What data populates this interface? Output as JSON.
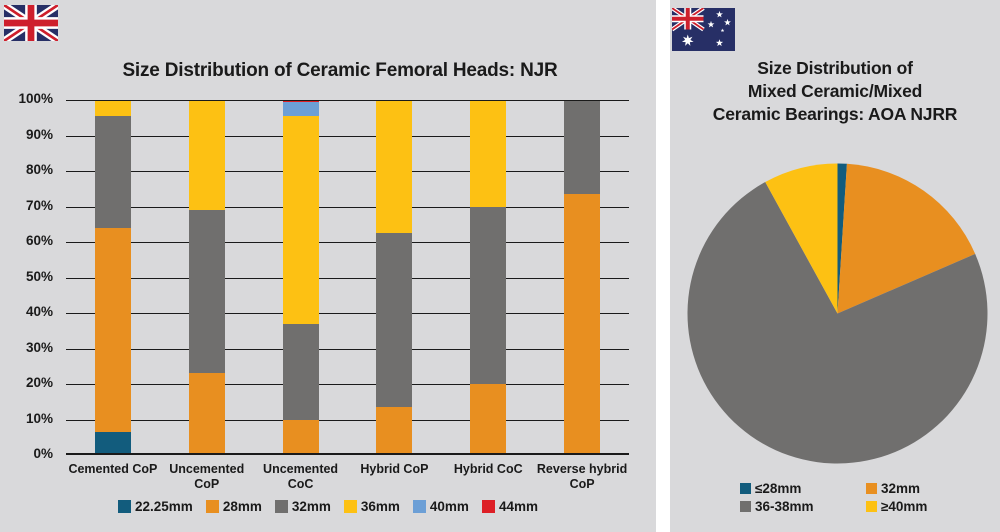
{
  "colors": {
    "size_2225": "#125c7d",
    "size_28": "#e88f20",
    "size_32": "#706f6e",
    "size_36": "#fdc113",
    "size_40": "#6c9fd6",
    "size_44": "#dd1f26",
    "panel_bg": "#d9d9db",
    "axis": "#1a1a1a"
  },
  "left_chart": {
    "title": "Size Distribution of Ceramic Femoral Heads: NJR",
    "flag": "united-kingdom"
  },
  "right_chart": {
    "title_lines": [
      "Size Distribution of",
      "Mixed Ceramic/Mixed",
      "Ceramic Bearings: AOA NJRR"
    ],
    "flag": "australia"
  },
  "chart_data": [
    {
      "type": "bar",
      "stacked": true,
      "title": "Size Distribution of Ceramic Femoral Heads: NJR",
      "categories": [
        "Cemented CoP",
        "Uncemented CoP",
        "Uncemented CoC",
        "Hybrid CoP",
        "Hybrid CoC",
        "Reverse hybrid CoP"
      ],
      "series": [
        {
          "name": "22.25mm",
          "color": "size_2225",
          "values": [
            6.5,
            0,
            0,
            0,
            0,
            0
          ]
        },
        {
          "name": "28mm",
          "color": "size_28",
          "values": [
            57.5,
            23,
            10,
            13.5,
            20,
            73.5
          ]
        },
        {
          "name": "32mm",
          "color": "size_32",
          "values": [
            31.5,
            46,
            27,
            49,
            50,
            26.5
          ]
        },
        {
          "name": "36mm",
          "color": "size_36",
          "values": [
            4.5,
            31,
            58.5,
            37.5,
            30,
            0
          ]
        },
        {
          "name": "40mm",
          "color": "size_40",
          "values": [
            0,
            0,
            4,
            0,
            0,
            0
          ]
        },
        {
          "name": "44mm",
          "color": "size_44",
          "values": [
            0,
            0,
            0.5,
            0,
            0,
            0
          ]
        }
      ],
      "ylabel": "",
      "xlabel": "",
      "ylim": [
        0,
        100
      ],
      "y_ticks": [
        "0%",
        "10%",
        "20%",
        "30%",
        "40%",
        "50%",
        "60%",
        "70%",
        "80%",
        "90%",
        "100%"
      ],
      "grid": true,
      "legend_position": "bottom"
    },
    {
      "type": "pie",
      "title": "Size Distribution of Mixed Ceramic/Mixed Ceramic Bearings: AOA NJRR",
      "slices": [
        {
          "label": "≤28mm",
          "color": "size_2225",
          "value": 1
        },
        {
          "label": "32mm",
          "color": "size_28",
          "value": 17.5
        },
        {
          "label": "36-38mm",
          "color": "size_32",
          "value": 73.5
        },
        {
          "label": "≥40mm",
          "color": "size_36",
          "value": 8
        }
      ],
      "start_angle_deg": 0,
      "direction": "clockwise",
      "legend_position": "bottom"
    }
  ]
}
